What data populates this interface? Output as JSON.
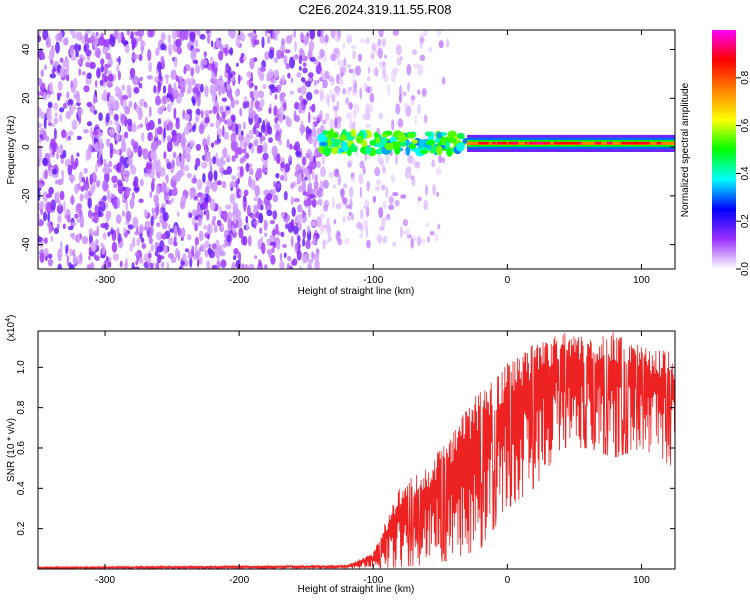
{
  "title": "C2E6.2024.319.11.55.R08",
  "chart_data": [
    {
      "type": "heatmap",
      "xlabel": "Height of straight line (km)",
      "ylabel": "Frequency (Hz)",
      "xlim": [
        -350,
        125
      ],
      "ylim": [
        -50,
        48
      ],
      "xticks": [
        -300,
        -200,
        -100,
        0,
        100
      ],
      "yticks": [
        -40,
        -20,
        0,
        20,
        40
      ],
      "colorbar": {
        "label": "Normalized spectral amplitude",
        "range": [
          0.0,
          1.0
        ],
        "ticks": [
          "0.0",
          "0.2",
          "0.4",
          "0.6",
          "0.8"
        ],
        "colors": [
          "#ffffff",
          "#9b30ff",
          "#0000ff",
          "#00ffff",
          "#00ff00",
          "#ffff00",
          "#ff8000",
          "#ff0000",
          "#ff00ff"
        ]
      },
      "regions": [
        {
          "x_range": [
            -350,
            -140
          ],
          "y_range": [
            -50,
            48
          ],
          "amplitude": [
            0.05,
            0.15
          ],
          "pattern": "dense-noise"
        },
        {
          "x_range": [
            -140,
            -30
          ],
          "y_range": [
            -40,
            48
          ],
          "amplitude": [
            0.03,
            0.1
          ],
          "pattern": "sparse-noise"
        },
        {
          "x_range": [
            -140,
            -30
          ],
          "y_center": 2,
          "amplitude": [
            0.3,
            0.6
          ],
          "pattern": "patchy-line"
        },
        {
          "x_range": [
            -30,
            125
          ],
          "y_center": 1.5,
          "amplitude": [
            0.5,
            0.9
          ],
          "pattern": "narrow-band"
        }
      ],
      "grid": false
    },
    {
      "type": "line",
      "xlabel": "Height of straight line (km)",
      "ylabel": "SNR (10 * v/v)",
      "yscale_label": "(x10",
      "yscale_exp": "4",
      "xlim": [
        -350,
        125
      ],
      "ylim": [
        0,
        1.18
      ],
      "xticks": [
        -300,
        -200,
        -100,
        0,
        100
      ],
      "yticks": [
        "0.2",
        "0.4",
        "0.6",
        "0.8",
        "1.0"
      ],
      "color": "#ee2222",
      "envelope": {
        "x": [
          -350,
          -120,
          -100,
          -80,
          -60,
          -40,
          -20,
          0,
          20,
          40,
          60,
          80,
          100,
          125
        ],
        "upper": [
          0.01,
          0.02,
          0.08,
          0.42,
          0.5,
          0.7,
          0.9,
          1.02,
          1.12,
          1.18,
          1.15,
          1.18,
          1.1,
          1.08
        ],
        "lower": [
          0.0,
          0.0,
          0.0,
          0.01,
          0.02,
          0.05,
          0.1,
          0.3,
          0.4,
          0.6,
          0.6,
          0.55,
          0.6,
          0.5
        ]
      },
      "grid": false
    }
  ]
}
